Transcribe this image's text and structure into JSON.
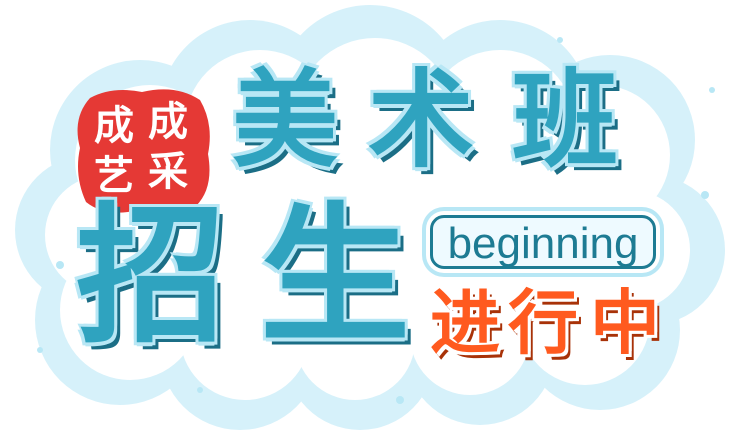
{
  "colors": {
    "main_teal": "#2fa3bf",
    "cloud_light_blue": "#b8e7f5",
    "stamp_red": "#e53935",
    "accent_orange": "#ff5a1f",
    "tag_teal": "#1d7b93"
  },
  "stamp": {
    "left_column": "成艺",
    "right_column": "成采",
    "char_tl": "成",
    "char_bl": "艺",
    "char_tr": "成",
    "char_br": "采"
  },
  "title": {
    "top_line": "美术班",
    "top_chars": [
      "美",
      "术",
      "班"
    ],
    "bottom_line": "招生",
    "bottom_chars": [
      "招",
      "生"
    ]
  },
  "tag": {
    "text": "beginning"
  },
  "subtitle": {
    "text": "进行中",
    "chars": [
      "进",
      "行",
      "中"
    ]
  }
}
